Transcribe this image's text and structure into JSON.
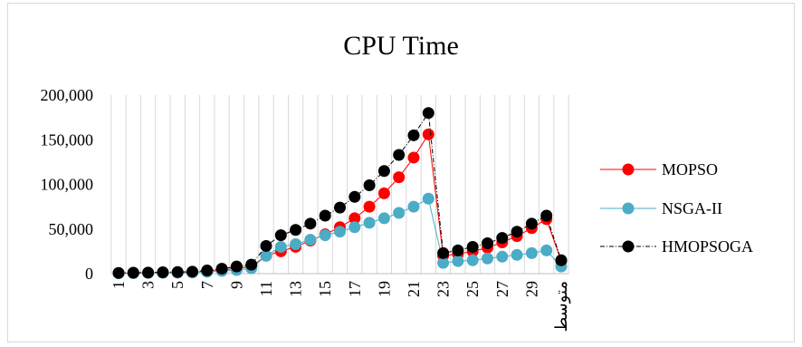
{
  "chart_data": {
    "type": "line",
    "title": "CPU Time",
    "x": [
      "1",
      "2",
      "3",
      "4",
      "5",
      "6",
      "7",
      "8",
      "9",
      "10",
      "11",
      "12",
      "13",
      "14",
      "15",
      "16",
      "17",
      "18",
      "19",
      "20",
      "21",
      "22",
      "23",
      "24",
      "25",
      "26",
      "27",
      "28",
      "29",
      "30",
      "متوسط"
    ],
    "x_tick_labels": [
      "1",
      "3",
      "5",
      "7",
      "9",
      "11",
      "13",
      "15",
      "17",
      "19",
      "21",
      "23",
      "25",
      "27",
      "29",
      "متوسط"
    ],
    "y_ticks": [
      "0",
      "50,000",
      "100,000",
      "150,000",
      "200,000"
    ],
    "ylim": [
      0,
      200000
    ],
    "grid": "vertical",
    "legend": "right",
    "series": [
      {
        "name": "MOPSO",
        "color": "#ff0000",
        "line_style": "solid",
        "values": [
          500,
          700,
          900,
          1100,
          1300,
          1600,
          2500,
          4000,
          6000,
          8000,
          20000,
          25000,
          30000,
          37000,
          44000,
          52000,
          62000,
          75000,
          90000,
          108000,
          130000,
          156000,
          20000,
          22000,
          25000,
          29000,
          35000,
          42000,
          51000,
          61000,
          14000
        ]
      },
      {
        "name": "NSGA-II",
        "color": "#4bacc6",
        "line_style": "solid",
        "values": [
          300,
          500,
          700,
          900,
          1100,
          1300,
          2000,
          3000,
          4000,
          6000,
          20000,
          30000,
          33000,
          38000,
          43000,
          47000,
          52000,
          57000,
          62000,
          68000,
          75000,
          84000,
          12000,
          14000,
          15000,
          17000,
          19000,
          21000,
          23000,
          26000,
          8000
        ]
      },
      {
        "name": "HMOPSOGA",
        "color": "#000000",
        "line_style": "dash-dot",
        "values": [
          800,
          1000,
          1200,
          1500,
          1800,
          2200,
          3500,
          5500,
          8000,
          10000,
          31000,
          43000,
          49000,
          56000,
          65000,
          74000,
          86000,
          99000,
          115000,
          133000,
          155000,
          180000,
          23000,
          26000,
          30000,
          34000,
          40000,
          47000,
          56000,
          65000,
          15000
        ]
      }
    ]
  }
}
